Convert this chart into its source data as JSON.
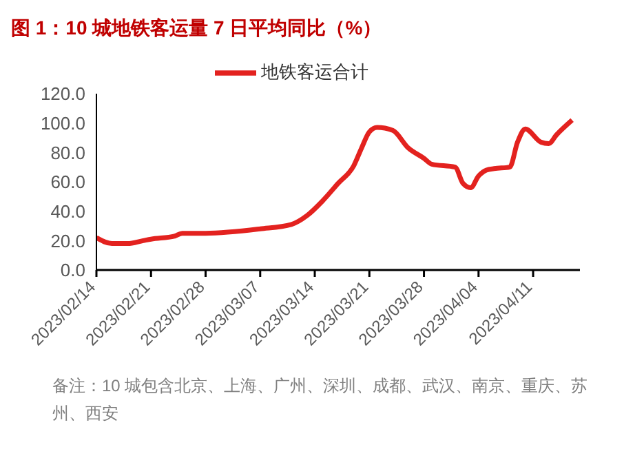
{
  "chart_data": {
    "type": "line",
    "title": "图 1：10 城地铁客运量 7 日平均同比（%）",
    "x": [
      "2023-02-14",
      "2023-02-16",
      "2023-02-18",
      "2023-02-20",
      "2023-02-21",
      "2023-02-24",
      "2023-02-25",
      "2023-02-28",
      "2023-03-07",
      "2023-03-11",
      "2023-03-13",
      "2023-03-15",
      "2023-03-17",
      "2023-03-19",
      "2023-03-20",
      "2023-03-21",
      "2023-03-22",
      "2023-03-24",
      "2023-03-26",
      "2023-03-28",
      "2023-03-29",
      "2023-04-01",
      "2023-04-02",
      "2023-04-03",
      "2023-04-04",
      "2023-04-05",
      "2023-04-06",
      "2023-04-08",
      "2023-04-09",
      "2023-04-10",
      "2023-04-12",
      "2023-04-13",
      "2023-04-14",
      "2023-04-16"
    ],
    "series": [
      {
        "name": "地铁客运合计",
        "color": "#e3221f",
        "values": [
          22,
          18,
          18,
          20,
          21,
          23,
          25,
          25,
          28,
          31,
          37,
          47,
          59,
          71,
          83,
          94,
          97,
          95,
          83,
          76,
          72,
          70,
          59,
          56,
          64,
          68,
          69,
          70,
          87,
          96,
          87,
          86,
          92,
          102
        ]
      }
    ],
    "xlim": [
      "2023-02-14",
      "2023-04-17"
    ],
    "xticks": [
      {
        "value": "2023-02-14",
        "label": "2023/02/14"
      },
      {
        "value": "2023-02-21",
        "label": "2023/02/21"
      },
      {
        "value": "2023-02-28",
        "label": "2023/02/28"
      },
      {
        "value": "2023-03-07",
        "label": "2023/03/07"
      },
      {
        "value": "2023-03-14",
        "label": "2023/03/14"
      },
      {
        "value": "2023-03-21",
        "label": "2023/03/21"
      },
      {
        "value": "2023-03-28",
        "label": "2023/03/28"
      },
      {
        "value": "2023-04-04",
        "label": "2023/04/04"
      },
      {
        "value": "2023-04-11",
        "label": "2023/04/11"
      }
    ],
    "ylim": [
      0,
      120
    ],
    "yticks": [
      {
        "value": 0,
        "label": "0.0"
      },
      {
        "value": 20,
        "label": "20.0"
      },
      {
        "value": 40,
        "label": "40.0"
      },
      {
        "value": 60,
        "label": "60.0"
      },
      {
        "value": 80,
        "label": "80.0"
      },
      {
        "value": 100,
        "label": "100.0"
      },
      {
        "value": 120,
        "label": "120.0"
      }
    ],
    "legend": "top",
    "grid": false,
    "marker": "none",
    "line_style": "solid",
    "annotations": [
      "备注：10 城包含北京、上海、广州、深圳、成都、武汉、南京、重庆、苏州、西安"
    ]
  }
}
